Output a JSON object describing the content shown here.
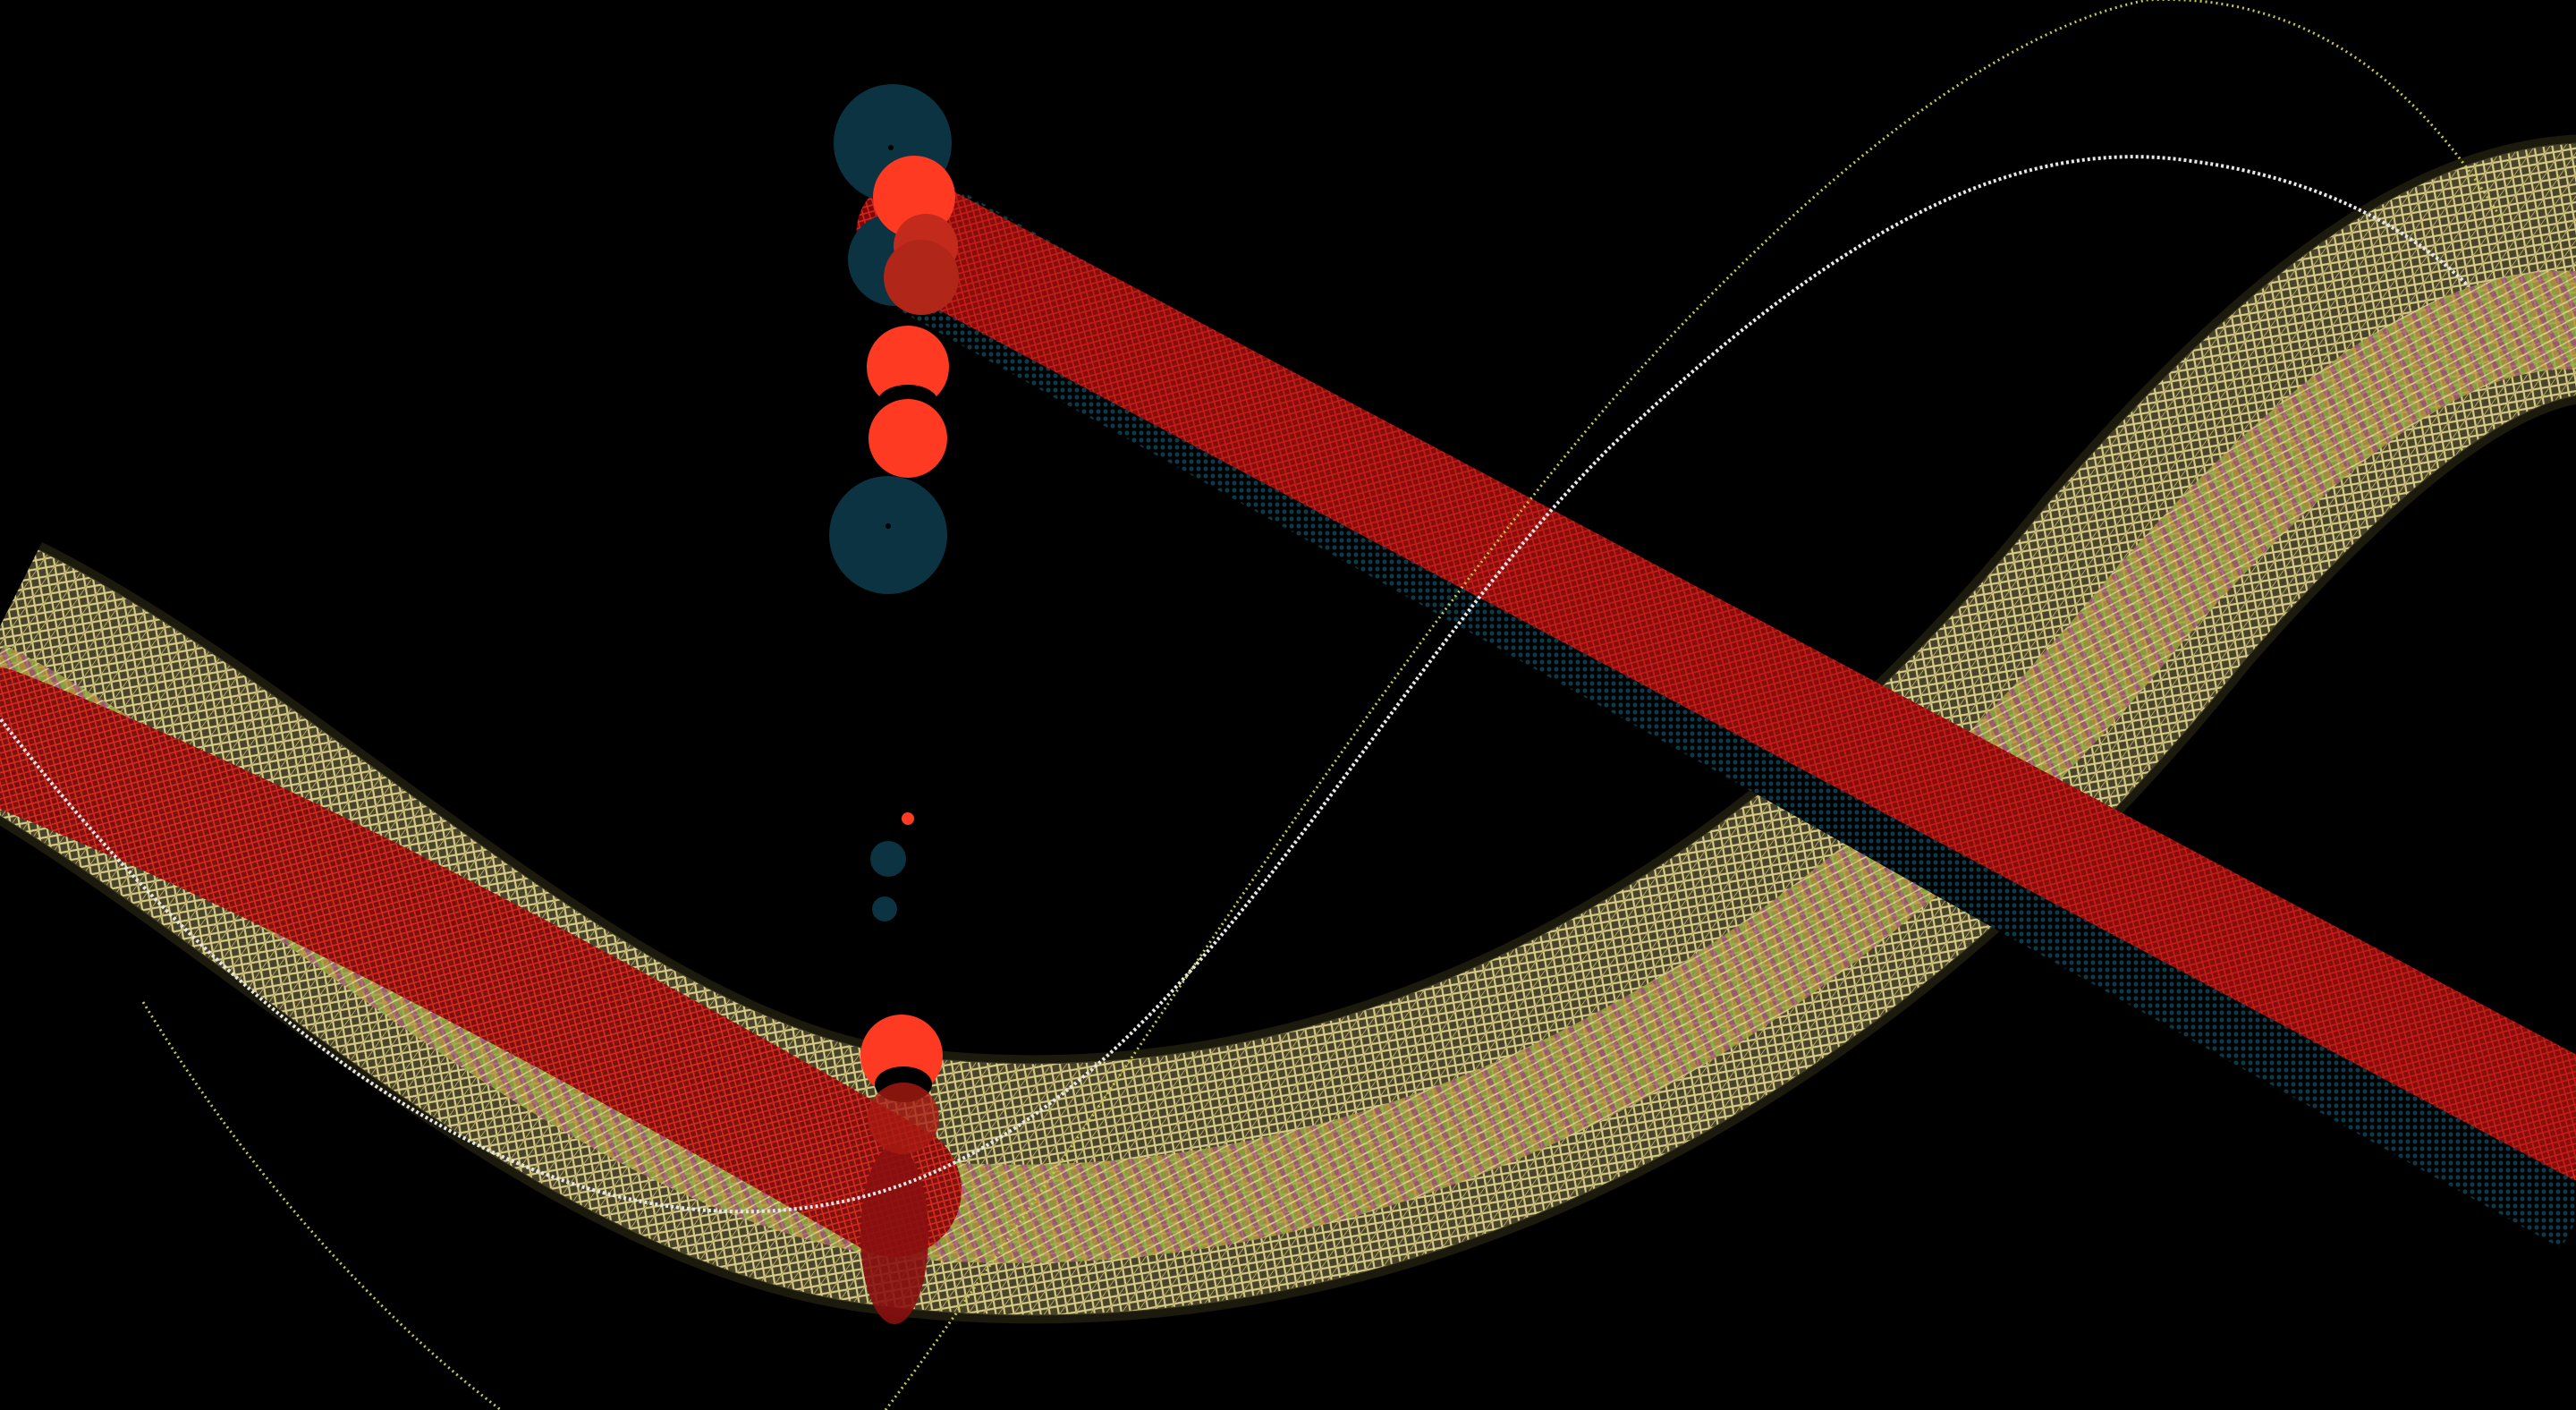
{
  "artwork": {
    "background": "#000000",
    "palette": {
      "ribbon_gold": "#d8cc8a",
      "ribbon_gold_dark": "#6b6236",
      "ribbon_rainbow": [
        "#b54a8c",
        "#9ac23c",
        "#d6a13a",
        "#7a9a2a",
        "#c74f96"
      ],
      "band_red": "#a01212",
      "band_red_bright": "#e02a20",
      "band_teal": "#0e3a48",
      "disc_red": "#ff3a22",
      "disc_teal": "#0b3342",
      "curve_white": "#e8e8e8",
      "curve_yellow": "#c8c850"
    },
    "elements": {
      "gold_ribbon": "woven-gold-ribbon",
      "red_band_right": "red-diagonal-band",
      "red_band_left": "red-left-band",
      "white_curve": "white-dotted-curve",
      "yellow_curve": "yellow-dotted-curve",
      "discs": "disc-column"
    }
  }
}
